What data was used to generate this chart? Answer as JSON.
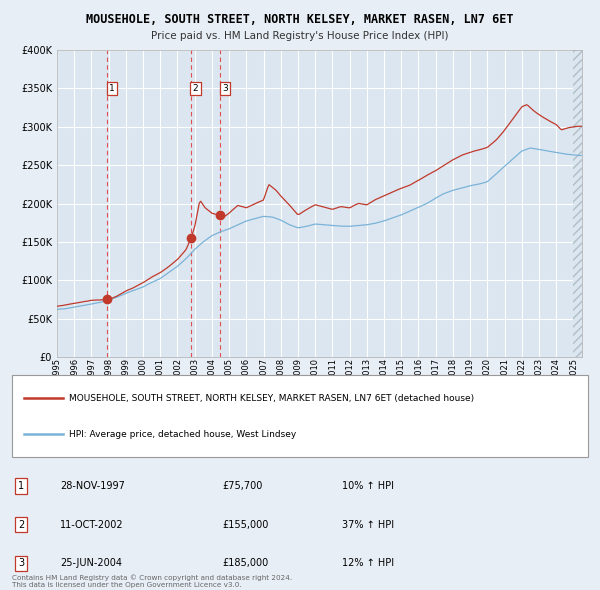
{
  "title": "MOUSEHOLE, SOUTH STREET, NORTH KELSEY, MARKET RASEN, LN7 6ET",
  "subtitle": "Price paid vs. HM Land Registry's House Price Index (HPI)",
  "background_color": "#e8eef5",
  "plot_bg_color": "#dce6f0",
  "grid_color": "#ffffff",
  "x_start": 1995.0,
  "x_end": 2025.5,
  "y_min": 0,
  "y_max": 400000,
  "y_ticks": [
    0,
    50000,
    100000,
    150000,
    200000,
    250000,
    300000,
    350000,
    400000
  ],
  "transactions": [
    {
      "num": 1,
      "date": "28-NOV-1997",
      "price": 75700,
      "pct": "10%",
      "direction": "↑",
      "x": 1997.91
    },
    {
      "num": 2,
      "date": "11-OCT-2002",
      "price": 155000,
      "pct": "37%",
      "direction": "↑",
      "x": 2002.78
    },
    {
      "num": 3,
      "date": "25-JUN-2004",
      "price": 185000,
      "pct": "12%",
      "direction": "↑",
      "x": 2004.48
    }
  ],
  "hpi_line_color": "#7ab3d8",
  "price_line_color": "#c0392b",
  "dot_color": "#c0392b",
  "vline_color": "#e05050",
  "legend_label_price": "MOUSEHOLE, SOUTH STREET, NORTH KELSEY, MARKET RASEN, LN7 6ET (detached house)",
  "legend_label_hpi": "HPI: Average price, detached house, West Lindsey",
  "footer": "Contains HM Land Registry data © Crown copyright and database right 2024.\nThis data is licensed under the Open Government Licence v3.0.",
  "x_ticks": [
    1995,
    1996,
    1997,
    1998,
    1999,
    2000,
    2001,
    2002,
    2003,
    2004,
    2005,
    2006,
    2007,
    2008,
    2009,
    2010,
    2011,
    2012,
    2013,
    2014,
    2015,
    2016,
    2017,
    2018,
    2019,
    2020,
    2021,
    2022,
    2023,
    2024,
    2025
  ]
}
